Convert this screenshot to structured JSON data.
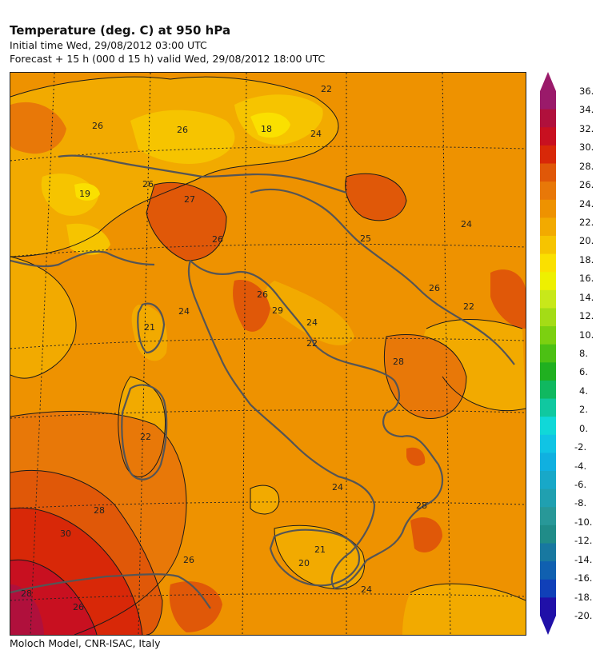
{
  "header": {
    "title": "Temperature (deg. C) at 950 hPa",
    "initial_time": "Initial time  Wed, 29/08/2012  03:00 UTC",
    "forecast": "Forecast  +  15 h  (000 d 15 h)  valid Wed, 29/08/2012 18:00 UTC"
  },
  "footer": {
    "credit": "Moloch Model, CNR-ISAC, Italy"
  },
  "colorbar": {
    "labels": [
      "36.",
      "34.",
      "32.",
      "30.",
      "28.",
      "26.",
      "24.",
      "22.",
      "20.",
      "18.",
      "16.",
      "14.",
      "12.",
      "10.",
      "8.",
      "6.",
      "4.",
      "2.",
      "0.",
      "-2.",
      "-4.",
      "-6.",
      "-8.",
      "-10.",
      "-12.",
      "-14.",
      "-16.",
      "-18.",
      "-20."
    ],
    "colors": [
      "#9a1a6a",
      "#b0103c",
      "#c81020",
      "#d82808",
      "#e05808",
      "#e87808",
      "#ee9200",
      "#f2aa00",
      "#f6c400",
      "#fae000",
      "#eef000",
      "#c8e81a",
      "#a4dc16",
      "#7cd010",
      "#4cc014",
      "#20b020",
      "#10b860",
      "#10c8a0",
      "#10d8d8",
      "#10c4e4",
      "#10b0e0",
      "#18a8c8",
      "#20a0b0",
      "#289898",
      "#208c88",
      "#1878a0",
      "#1060b0",
      "#1040b8",
      "#2010a8"
    ]
  },
  "map": {
    "contour_labels": [
      "22",
      "18",
      "24",
      "26",
      "26",
      "19",
      "26",
      "27",
      "26",
      "24",
      "24",
      "21",
      "26",
      "25",
      "29",
      "26",
      "24",
      "22",
      "22",
      "28",
      "22",
      "24",
      "28",
      "28",
      "30",
      "26",
      "26",
      "21",
      "20",
      "28",
      "24"
    ],
    "colors": {
      "base": "#ee9200",
      "warm": "#e87808",
      "hot": "#e05808",
      "hotter": "#d82808",
      "hottest": "#c81020",
      "peak": "#b0103c",
      "cool": "#f2aa00",
      "cooler": "#f6c400",
      "coolest": "#fae000",
      "coast": "#555555"
    }
  }
}
